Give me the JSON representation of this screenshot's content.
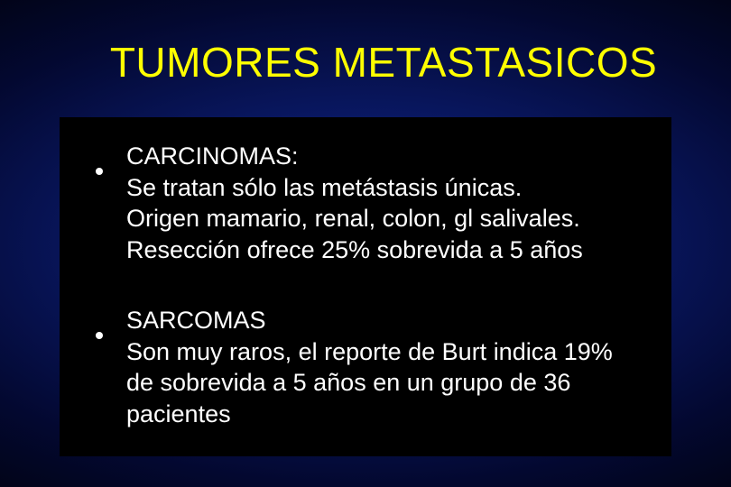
{
  "slide": {
    "title": "TUMORES METASTASICOS",
    "title_color": "#ffff00",
    "title_fontsize": 46,
    "background": {
      "type": "radial-gradient",
      "inner_color": "#1a3a9a",
      "mid_color": "#0a1a6a",
      "outer_color": "#000000"
    },
    "content_bg": "#000000",
    "text_color": "#ffffff",
    "body_fontsize": 27,
    "bullets": [
      {
        "heading": "CARCINOMAS:",
        "lines": [
          "Se tratan sólo las metástasis únicas.",
          "Origen mamario, renal, colon, gl salivales.",
          "Resección ofrece 25% sobrevida a 5 años"
        ]
      },
      {
        "heading": "SARCOMAS",
        "lines": [
          "Son muy raros, el reporte de Burt indica 19% de sobrevida a 5 años en un grupo de 36 pacientes"
        ]
      }
    ]
  }
}
